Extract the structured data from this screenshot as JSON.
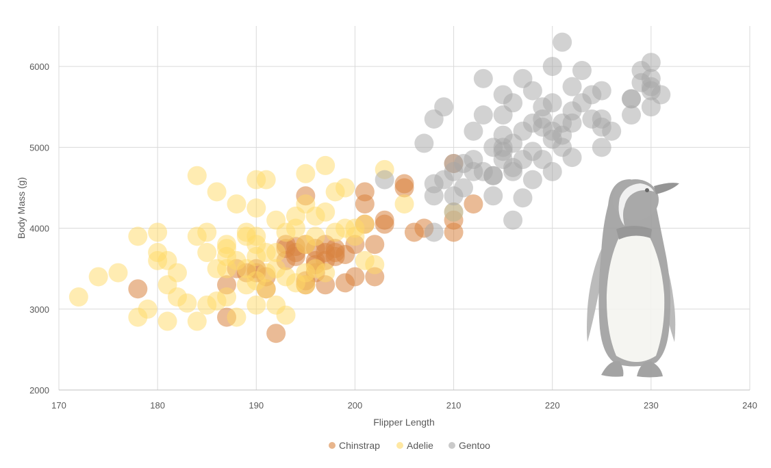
{
  "chart_data": {
    "type": "scatter",
    "title": "",
    "xlabel": "Flipper Length",
    "ylabel": "Body Mass (g)",
    "xlim": [
      170,
      240
    ],
    "ylim": [
      2000,
      6500
    ],
    "xticks": [
      170,
      180,
      190,
      200,
      210,
      220,
      230,
      240
    ],
    "yticks": [
      2000,
      3000,
      4000,
      5000,
      6000
    ],
    "grid": true,
    "legend_position": "bottom",
    "series": [
      {
        "name": "Chinstrap",
        "color": "#d9843f",
        "points": [
          [
            178,
            3250
          ],
          [
            187,
            2900
          ],
          [
            187,
            3300
          ],
          [
            188,
            3500
          ],
          [
            189,
            3450
          ],
          [
            190,
            3500
          ],
          [
            190,
            3450
          ],
          [
            191,
            3400
          ],
          [
            191,
            3250
          ],
          [
            192,
            2700
          ],
          [
            193,
            3800
          ],
          [
            193,
            3750
          ],
          [
            193,
            3600
          ],
          [
            194,
            3700
          ],
          [
            194,
            3650
          ],
          [
            195,
            3800
          ],
          [
            195,
            3350
          ],
          [
            195,
            3300
          ],
          [
            195,
            4400
          ],
          [
            196,
            3550
          ],
          [
            196,
            3600
          ],
          [
            196,
            3750
          ],
          [
            197,
            3700
          ],
          [
            197,
            3300
          ],
          [
            197,
            3800
          ],
          [
            198,
            3750
          ],
          [
            198,
            3650
          ],
          [
            198,
            3700
          ],
          [
            199,
            3325
          ],
          [
            199,
            3675
          ],
          [
            200,
            3800
          ],
          [
            200,
            3400
          ],
          [
            201,
            4300
          ],
          [
            201,
            4450
          ],
          [
            201,
            4050
          ],
          [
            202,
            3400
          ],
          [
            202,
            3800
          ],
          [
            203,
            4050
          ],
          [
            203,
            4100
          ],
          [
            205,
            4550
          ],
          [
            205,
            4500
          ],
          [
            206,
            3950
          ],
          [
            207,
            4000
          ],
          [
            210,
            3950
          ],
          [
            210,
            4100
          ],
          [
            210,
            4800
          ],
          [
            212,
            4300
          ],
          [
            197,
            3600
          ],
          [
            194,
            3775
          ],
          [
            196,
            3450
          ]
        ]
      },
      {
        "name": "Adelie",
        "color": "#ffd966",
        "points": [
          [
            172,
            3150
          ],
          [
            174,
            3400
          ],
          [
            176,
            3450
          ],
          [
            178,
            3900
          ],
          [
            178,
            2900
          ],
          [
            179,
            3000
          ],
          [
            180,
            3600
          ],
          [
            180,
            3950
          ],
          [
            180,
            3700
          ],
          [
            181,
            3600
          ],
          [
            181,
            2850
          ],
          [
            181,
            3300
          ],
          [
            182,
            3150
          ],
          [
            182,
            3450
          ],
          [
            183,
            3075
          ],
          [
            184,
            3900
          ],
          [
            184,
            2850
          ],
          [
            184,
            4650
          ],
          [
            185,
            3700
          ],
          [
            185,
            3050
          ],
          [
            185,
            3950
          ],
          [
            186,
            3500
          ],
          [
            186,
            4450
          ],
          [
            186,
            3100
          ],
          [
            187,
            3800
          ],
          [
            187,
            3650
          ],
          [
            187,
            3500
          ],
          [
            187,
            3150
          ],
          [
            188,
            2900
          ],
          [
            188,
            3600
          ],
          [
            188,
            4300
          ],
          [
            189,
            3300
          ],
          [
            189,
            3500
          ],
          [
            189,
            3950
          ],
          [
            190,
            3800
          ],
          [
            190,
            3900
          ],
          [
            190,
            3650
          ],
          [
            190,
            3350
          ],
          [
            190,
            4600
          ],
          [
            190,
            4250
          ],
          [
            190,
            3050
          ],
          [
            191,
            3700
          ],
          [
            191,
            3450
          ],
          [
            191,
            4600
          ],
          [
            191,
            3250
          ],
          [
            192,
            4100
          ],
          [
            192,
            3500
          ],
          [
            192,
            3050
          ],
          [
            193,
            3950
          ],
          [
            193,
            3400
          ],
          [
            193,
            2925
          ],
          [
            194,
            4000
          ],
          [
            194,
            3325
          ],
          [
            195,
            3800
          ],
          [
            195,
            4675
          ],
          [
            195,
            4300
          ],
          [
            195,
            3450
          ],
          [
            195,
            3300
          ],
          [
            196,
            4150
          ],
          [
            196,
            3500
          ],
          [
            196,
            3900
          ],
          [
            197,
            4200
          ],
          [
            197,
            4775
          ],
          [
            197,
            3450
          ],
          [
            198,
            3950
          ],
          [
            198,
            4450
          ],
          [
            199,
            4000
          ],
          [
            199,
            4500
          ],
          [
            200,
            4000
          ],
          [
            200,
            3900
          ],
          [
            201,
            4050
          ],
          [
            201,
            3600
          ],
          [
            202,
            3550
          ],
          [
            203,
            4725
          ],
          [
            205,
            4300
          ],
          [
            210,
            4200
          ],
          [
            187,
            3750
          ],
          [
            192,
            3700
          ],
          [
            194,
            4150
          ],
          [
            189,
            3900
          ]
        ]
      },
      {
        "name": "Gentoo",
        "color": "#a6a6a6",
        "points": [
          [
            203,
            4600
          ],
          [
            207,
            5050
          ],
          [
            208,
            4550
          ],
          [
            208,
            5350
          ],
          [
            208,
            4400
          ],
          [
            208,
            3950
          ],
          [
            209,
            5500
          ],
          [
            209,
            4600
          ],
          [
            210,
            4800
          ],
          [
            210,
            4200
          ],
          [
            210,
            4700
          ],
          [
            210,
            4400
          ],
          [
            211,
            4500
          ],
          [
            211,
            4800
          ],
          [
            212,
            5200
          ],
          [
            212,
            4850
          ],
          [
            212,
            4700
          ],
          [
            213,
            5400
          ],
          [
            213,
            5850
          ],
          [
            213,
            4700
          ],
          [
            214,
            4400
          ],
          [
            214,
            4650
          ],
          [
            214,
            5000
          ],
          [
            215,
            5650
          ],
          [
            215,
            5150
          ],
          [
            215,
            4850
          ],
          [
            215,
            5000
          ],
          [
            215,
            5400
          ],
          [
            215,
            4950
          ],
          [
            216,
            4100
          ],
          [
            216,
            4750
          ],
          [
            216,
            5550
          ],
          [
            216,
            4700
          ],
          [
            217,
            4375
          ],
          [
            217,
            5850
          ],
          [
            217,
            4850
          ],
          [
            217,
            5200
          ],
          [
            218,
            5700
          ],
          [
            218,
            5300
          ],
          [
            218,
            4600
          ],
          [
            218,
            4950
          ],
          [
            219,
            5500
          ],
          [
            219,
            4850
          ],
          [
            219,
            5250
          ],
          [
            220,
            6000
          ],
          [
            220,
            5550
          ],
          [
            220,
            4700
          ],
          [
            220,
            5100
          ],
          [
            220,
            5200
          ],
          [
            221,
            6300
          ],
          [
            221,
            5300
          ],
          [
            221,
            5000
          ],
          [
            221,
            5150
          ],
          [
            222,
            5750
          ],
          [
            222,
            5450
          ],
          [
            222,
            4875
          ],
          [
            222,
            5300
          ],
          [
            223,
            5950
          ],
          [
            223,
            5550
          ],
          [
            224,
            5350
          ],
          [
            224,
            5650
          ],
          [
            225,
            5700
          ],
          [
            225,
            5000
          ],
          [
            225,
            5350
          ],
          [
            226,
            5200
          ],
          [
            228,
            5600
          ],
          [
            228,
            5400
          ],
          [
            228,
            5600
          ],
          [
            229,
            5950
          ],
          [
            229,
            5800
          ],
          [
            230,
            6050
          ],
          [
            230,
            5700
          ],
          [
            230,
            5850
          ],
          [
            230,
            5500
          ],
          [
            231,
            5650
          ],
          [
            230,
            5750
          ],
          [
            225,
            5250
          ],
          [
            219,
            5350
          ],
          [
            214,
            4650
          ],
          [
            216,
            5050
          ]
        ]
      }
    ]
  }
}
